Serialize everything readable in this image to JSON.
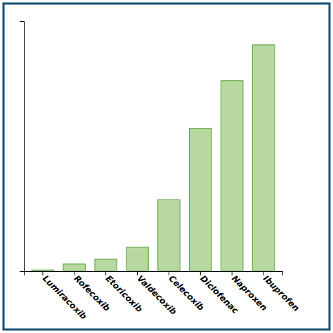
{
  "chart_data": {
    "type": "bar",
    "categories": [
      "Lumiracoxib",
      "Rofecoxib",
      "Etoricoxib",
      "Valdecoxib",
      "Celecoxib",
      "Diclofenac",
      "Naproxen",
      "Ibuprofen"
    ],
    "values": [
      0.5,
      3,
      5,
      10,
      30,
      60,
      80,
      95
    ],
    "color": "#b7d9a0",
    "ylim": [
      0,
      105
    ],
    "yticks": [],
    "grid": false,
    "tick_labels": "x"
  }
}
